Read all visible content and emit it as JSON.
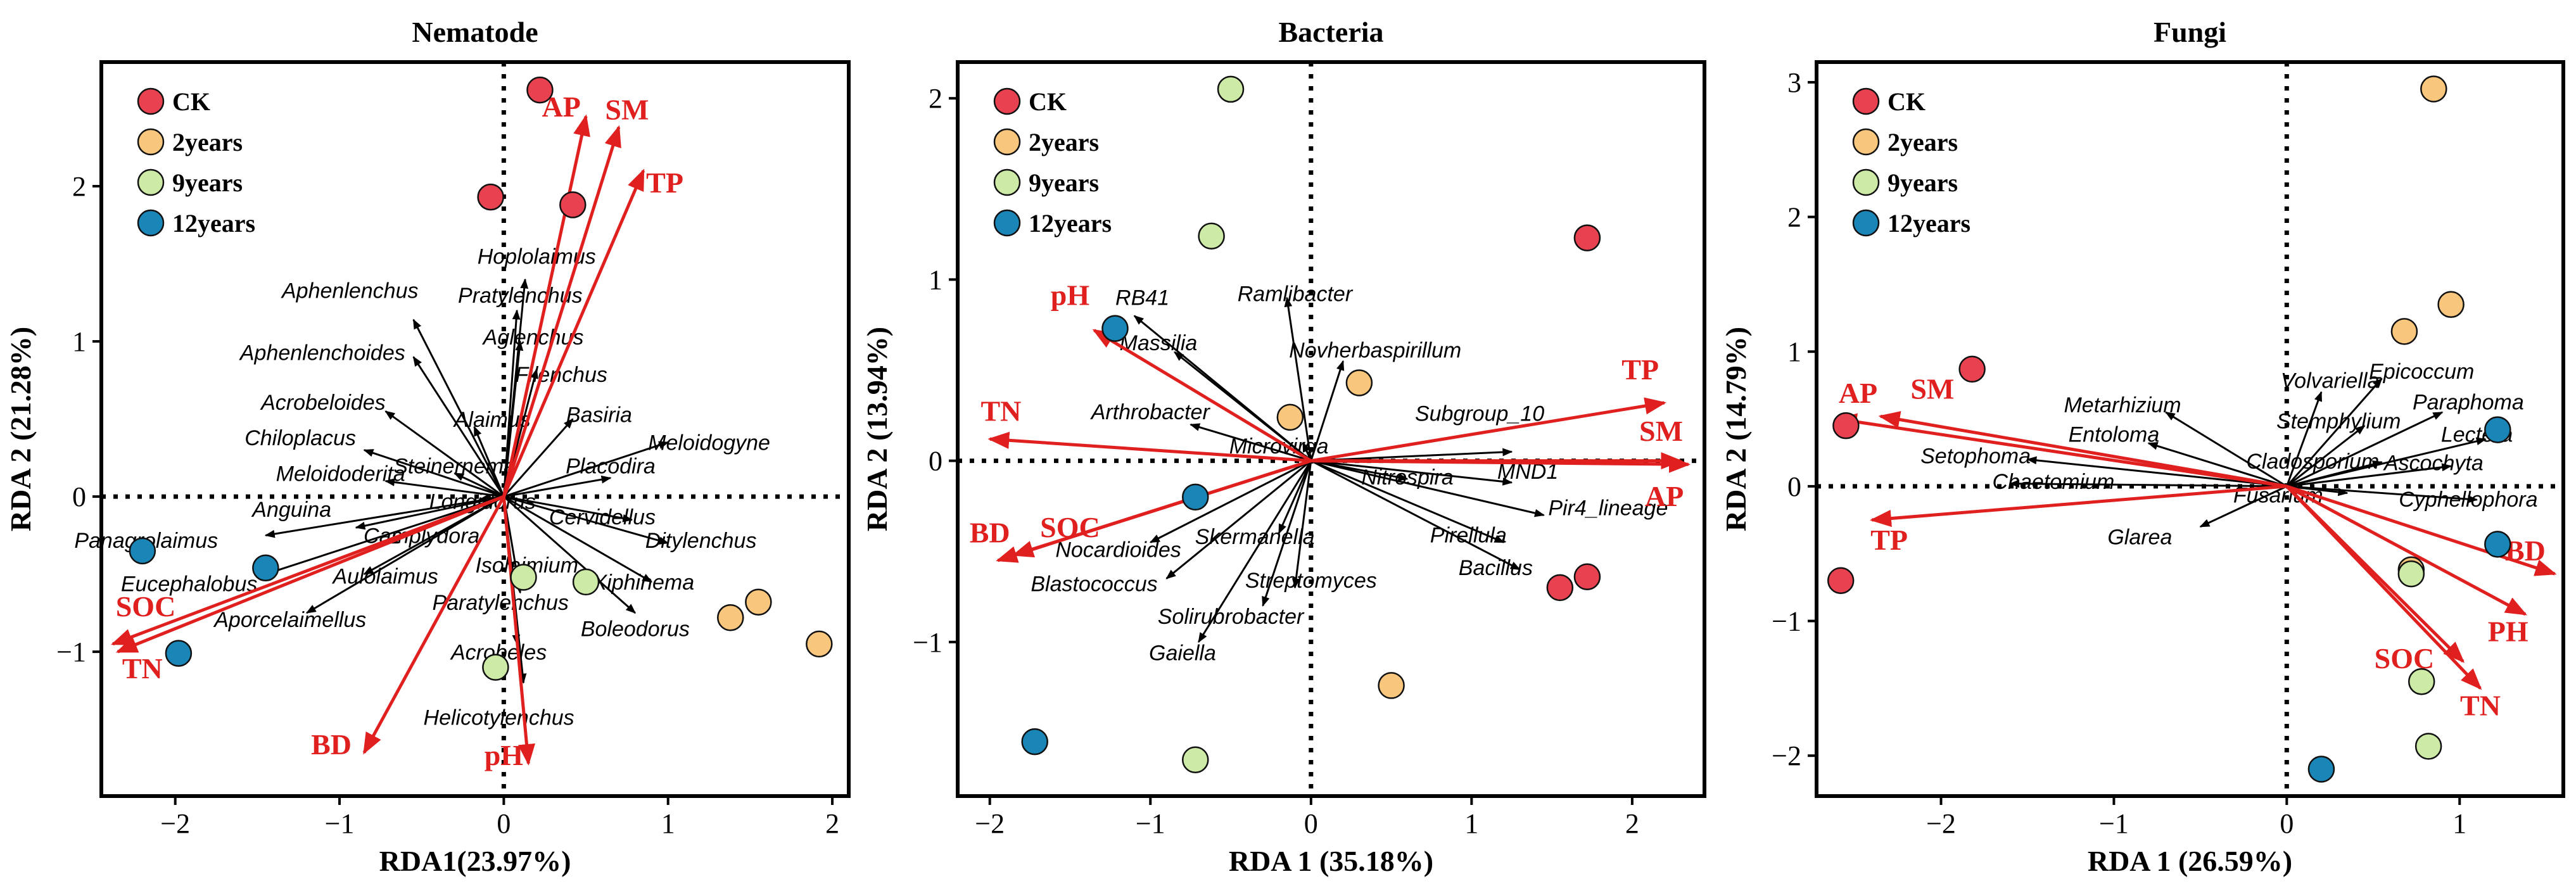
{
  "colors": {
    "CK": "#e8414f",
    "2years": "#f8c67c",
    "9years": "#cdeaa6",
    "12years": "#1a86b8",
    "env": "#e01f1f"
  },
  "legend": [
    "CK",
    "2years",
    "9years",
    "12years"
  ],
  "chart_data": [
    {
      "type": "scatter",
      "panel": "Nematode",
      "title": "Nematode",
      "xlabel": "RDA1(23.97%)",
      "ylabel": "RDA 2 (21.28%)",
      "xlim": [
        -2.45,
        2.1
      ],
      "ylim": [
        -1.93,
        2.8
      ],
      "xticks": [
        -2,
        -1,
        0,
        1,
        2
      ],
      "yticks": [
        -1,
        0,
        1,
        2
      ],
      "points": [
        {
          "g": "CK",
          "x": 0.22,
          "y": 2.62
        },
        {
          "g": "CK",
          "x": -0.08,
          "y": 1.93
        },
        {
          "g": "CK",
          "x": 0.42,
          "y": 1.88
        },
        {
          "g": "2years",
          "x": 1.38,
          "y": -0.78
        },
        {
          "g": "2years",
          "x": 1.55,
          "y": -0.68
        },
        {
          "g": "2years",
          "x": 1.92,
          "y": -0.95
        },
        {
          "g": "9years",
          "x": 0.12,
          "y": -0.52
        },
        {
          "g": "9years",
          "x": 0.5,
          "y": -0.55
        },
        {
          "g": "9years",
          "x": -0.05,
          "y": -1.1
        },
        {
          "g": "12years",
          "x": -2.2,
          "y": -0.35
        },
        {
          "g": "12years",
          "x": -1.45,
          "y": -0.46
        },
        {
          "g": "12years",
          "x": -1.98,
          "y": -1.01
        }
      ],
      "env": [
        {
          "label": "AP",
          "x": 0.5,
          "y": 2.45,
          "lx": 0.35,
          "ly": 2.45
        },
        {
          "label": "SM",
          "x": 0.7,
          "y": 2.38,
          "lx": 0.75,
          "ly": 2.43
        },
        {
          "label": "TP",
          "x": 0.85,
          "y": 2.1,
          "lx": 0.98,
          "ly": 1.96
        },
        {
          "label": "SOC",
          "x": -2.38,
          "y": -0.95,
          "lx": -2.18,
          "ly": -0.77
        },
        {
          "label": "TN",
          "x": -2.35,
          "y": -1.0,
          "lx": -2.2,
          "ly": -1.17
        },
        {
          "label": "BD",
          "x": -0.85,
          "y": -1.65,
          "lx": -1.05,
          "ly": -1.66
        },
        {
          "label": "pH",
          "x": 0.15,
          "y": -1.72,
          "lx": 0.0,
          "ly": -1.73
        }
      ],
      "species": [
        {
          "name": "Hoplolaimus",
          "x": 0.13,
          "y": 1.4,
          "lx": 0.2,
          "ly": 1.5,
          "a": "middle"
        },
        {
          "name": "Pratylenchus",
          "x": 0.08,
          "y": 1.2,
          "lx": 0.1,
          "ly": 1.25,
          "a": "middle"
        },
        {
          "name": "Aphenlenchus",
          "x": -0.55,
          "y": 1.14,
          "lx": -0.52,
          "ly": 1.28,
          "a": "end"
        },
        {
          "name": "Aglenchus",
          "x": 0.1,
          "y": 1.0,
          "lx": 0.18,
          "ly": 0.98,
          "a": "middle"
        },
        {
          "name": "Aphenlenchoides",
          "x": -0.55,
          "y": 0.9,
          "lx": -0.6,
          "ly": 0.88,
          "a": "end"
        },
        {
          "name": "Filenchus",
          "x": 0.2,
          "y": 0.82,
          "lx": 0.35,
          "ly": 0.74,
          "a": "middle"
        },
        {
          "name": "Acrobeloides",
          "x": -0.72,
          "y": 0.55,
          "lx": -0.72,
          "ly": 0.56,
          "a": "end"
        },
        {
          "name": "Alaimus",
          "x": -0.18,
          "y": 0.45,
          "lx": -0.07,
          "ly": 0.45,
          "a": "middle"
        },
        {
          "name": "Basiria",
          "x": 0.42,
          "y": 0.5,
          "lx": 0.38,
          "ly": 0.48,
          "a": "start"
        },
        {
          "name": "Chiloplacus",
          "x": -0.85,
          "y": 0.3,
          "lx": -0.9,
          "ly": 0.33,
          "a": "end"
        },
        {
          "name": "Meloidogyne",
          "x": 1.0,
          "y": 0.35,
          "lx": 1.25,
          "ly": 0.3,
          "a": "middle"
        },
        {
          "name": "Steinernema",
          "x": -0.3,
          "y": 0.15,
          "lx": -0.3,
          "ly": 0.15,
          "a": "middle"
        },
        {
          "name": "Placodira",
          "x": 0.65,
          "y": 0.12,
          "lx": 0.65,
          "ly": 0.15,
          "a": "middle"
        },
        {
          "name": "Meloidoderita",
          "x": -0.72,
          "y": 0.1,
          "lx": -0.6,
          "ly": 0.1,
          "a": "end"
        },
        {
          "name": "Longidorus",
          "x": -0.15,
          "y": -0.02,
          "lx": -0.13,
          "ly": -0.08,
          "a": "middle"
        },
        {
          "name": "Anguina",
          "x": -0.9,
          "y": -0.2,
          "lx": -1.05,
          "ly": -0.13,
          "a": "end"
        },
        {
          "name": "Cervidellus",
          "x": 0.78,
          "y": -0.15,
          "lx": 0.6,
          "ly": -0.18,
          "a": "middle"
        },
        {
          "name": "Camplydora",
          "x": -0.7,
          "y": -0.3,
          "lx": -0.5,
          "ly": -0.3,
          "a": "middle"
        },
        {
          "name": "Panagrolaimus",
          "x": -1.45,
          "y": -0.25,
          "lx": -1.74,
          "ly": -0.33,
          "a": "end"
        },
        {
          "name": "Ditylenchus",
          "x": 1.0,
          "y": -0.3,
          "lx": 1.2,
          "ly": -0.33,
          "a": "middle"
        },
        {
          "name": "Isolaimium",
          "x": 0.05,
          "y": -0.48,
          "lx": 0.14,
          "ly": -0.49,
          "a": "middle"
        },
        {
          "name": "Xiphinema",
          "x": 0.9,
          "y": -0.55,
          "lx": 0.85,
          "ly": -0.6,
          "a": "middle"
        },
        {
          "name": "Eucephalobus",
          "x": -1.45,
          "y": -0.5,
          "lx": -1.5,
          "ly": -0.61,
          "a": "end"
        },
        {
          "name": "Aulolaimus",
          "x": -0.85,
          "y": -0.5,
          "lx": -0.72,
          "ly": -0.56,
          "a": "middle"
        },
        {
          "name": "Paratylenchus",
          "x": 0.1,
          "y": -0.62,
          "lx": -0.02,
          "ly": -0.73,
          "a": "middle"
        },
        {
          "name": "Boleodorus",
          "x": 0.8,
          "y": -0.75,
          "lx": 0.8,
          "ly": -0.9,
          "a": "middle"
        },
        {
          "name": "Aporcelaimellus",
          "x": -1.2,
          "y": -0.75,
          "lx": -1.3,
          "ly": -0.84,
          "a": "middle"
        },
        {
          "name": "Acrobeles",
          "x": 0.08,
          "y": -0.95,
          "lx": -0.03,
          "ly": -1.05,
          "a": "middle"
        },
        {
          "name": "Helicotylenchus",
          "x": 0.12,
          "y": -1.2,
          "lx": -0.03,
          "ly": -1.47,
          "a": "middle"
        }
      ]
    },
    {
      "type": "scatter",
      "panel": "Bacteria",
      "title": "Bacteria",
      "xlabel": "RDA 1 (35.18%)",
      "ylabel": "RDA 2 (13.94%)",
      "xlim": [
        -2.2,
        2.45
      ],
      "ylim": [
        -1.85,
        2.2
      ],
      "xticks": [
        -2,
        -1,
        0,
        1,
        2
      ],
      "yticks": [
        -1,
        0,
        1,
        2
      ],
      "points": [
        {
          "g": "CK",
          "x": 1.72,
          "y": 1.23
        },
        {
          "g": "CK",
          "x": 1.55,
          "y": -0.7
        },
        {
          "g": "CK",
          "x": 1.72,
          "y": -0.64
        },
        {
          "g": "2years",
          "x": -0.13,
          "y": 0.24
        },
        {
          "g": "2years",
          "x": 0.3,
          "y": 0.43
        },
        {
          "g": "2years",
          "x": 0.5,
          "y": -1.24
        },
        {
          "g": "9years",
          "x": -0.5,
          "y": 2.05
        },
        {
          "g": "9years",
          "x": -0.62,
          "y": 1.24
        },
        {
          "g": "9years",
          "x": -0.72,
          "y": -1.65
        },
        {
          "g": "12years",
          "x": -1.22,
          "y": 0.73
        },
        {
          "g": "12years",
          "x": -0.72,
          "y": -0.2
        },
        {
          "g": "12years",
          "x": -1.72,
          "y": -1.55
        }
      ],
      "env": [
        {
          "label": "TP",
          "x": 2.2,
          "y": 0.32,
          "lx": 2.05,
          "ly": 0.45,
          "a": "middle"
        },
        {
          "label": "SM",
          "x": 2.3,
          "y": 0.0,
          "lx": 2.18,
          "ly": 0.11,
          "a": "middle"
        },
        {
          "label": "AP",
          "x": 2.35,
          "y": -0.02,
          "lx": 2.2,
          "ly": -0.25,
          "a": "middle"
        },
        {
          "label": "pH",
          "x": -1.35,
          "y": 0.72,
          "lx": -1.5,
          "ly": 0.86,
          "a": "middle"
        },
        {
          "label": "TN",
          "x": -2.0,
          "y": 0.12,
          "lx": -1.93,
          "ly": 0.22,
          "a": "middle"
        },
        {
          "label": "BD",
          "x": -1.95,
          "y": -0.55,
          "lx": -2.0,
          "ly": -0.45,
          "a": "middle"
        },
        {
          "label": "SOC",
          "x": -1.85,
          "y": -0.52,
          "lx": -1.5,
          "ly": -0.42,
          "a": "middle"
        }
      ],
      "species": [
        {
          "name": "RB41",
          "x": -1.1,
          "y": 0.8,
          "lx": -1.05,
          "ly": 0.86,
          "a": "middle"
        },
        {
          "name": "Ramlibacter",
          "x": -0.15,
          "y": 0.9,
          "lx": -0.1,
          "ly": 0.88,
          "a": "middle"
        },
        {
          "name": "Massilia",
          "x": -0.85,
          "y": 0.6,
          "lx": -0.95,
          "ly": 0.61,
          "a": "middle"
        },
        {
          "name": "Novherbaspirillum",
          "x": 0.2,
          "y": 0.55,
          "lx": 0.4,
          "ly": 0.57,
          "a": "middle"
        },
        {
          "name": "Subgroup_10",
          "x": 1.25,
          "y": 0.05,
          "lx": 1.05,
          "ly": 0.22,
          "a": "middle"
        },
        {
          "name": "Arthrobacter",
          "x": -0.75,
          "y": 0.2,
          "lx": -1.0,
          "ly": 0.23,
          "a": "middle"
        },
        {
          "name": "Microvirga",
          "x": -0.05,
          "y": 0.1,
          "lx": -0.2,
          "ly": 0.04,
          "a": "middle"
        },
        {
          "name": "Nitrospira",
          "x": 0.6,
          "y": -0.1,
          "lx": 0.6,
          "ly": -0.13,
          "a": "middle"
        },
        {
          "name": "MND1",
          "x": 1.25,
          "y": -0.12,
          "lx": 1.35,
          "ly": -0.1,
          "a": "middle"
        },
        {
          "name": "Pir4_lineage",
          "x": 1.45,
          "y": -0.3,
          "lx": 1.85,
          "ly": -0.3,
          "a": "middle"
        },
        {
          "name": "Pirellula",
          "x": 1.2,
          "y": -0.45,
          "lx": 0.98,
          "ly": -0.45,
          "a": "middle"
        },
        {
          "name": "Skermanella",
          "x": -0.2,
          "y": -0.4,
          "lx": -0.35,
          "ly": -0.46,
          "a": "middle"
        },
        {
          "name": "Nocardioides",
          "x": -1.0,
          "y": -0.45,
          "lx": -1.2,
          "ly": -0.53,
          "a": "middle"
        },
        {
          "name": "Bacillus",
          "x": 1.3,
          "y": -0.6,
          "lx": 1.15,
          "ly": -0.63,
          "a": "middle"
        },
        {
          "name": "Blastococcus",
          "x": -0.9,
          "y": -0.65,
          "lx": -1.35,
          "ly": -0.72,
          "a": "middle"
        },
        {
          "name": "Streptomyces",
          "x": -0.1,
          "y": -0.7,
          "lx": 0.0,
          "ly": -0.7,
          "a": "middle"
        },
        {
          "name": "Solirubrobacter",
          "x": -0.3,
          "y": -0.8,
          "lx": -0.5,
          "ly": -0.9,
          "a": "middle"
        },
        {
          "name": "Gaiella",
          "x": -0.7,
          "y": -1.0,
          "lx": -0.8,
          "ly": -1.1,
          "a": "middle"
        }
      ]
    },
    {
      "type": "scatter",
      "panel": "Fungi",
      "title": "Fungi",
      "xlabel": "RDA 1 (26.59%)",
      "ylabel": "RDA 2 (14.79%)",
      "xlim": [
        -2.72,
        1.6
      ],
      "ylim": [
        -2.3,
        3.15
      ],
      "xticks": [
        -2,
        -1,
        0,
        1
      ],
      "yticks": [
        -2,
        -1,
        0,
        1,
        2,
        3
      ],
      "points": [
        {
          "g": "CK",
          "x": -1.82,
          "y": 0.87
        },
        {
          "g": "CK",
          "x": -2.55,
          "y": 0.45
        },
        {
          "g": "CK",
          "x": -2.58,
          "y": -0.7
        },
        {
          "g": "2years",
          "x": 0.85,
          "y": 2.95
        },
        {
          "g": "2years",
          "x": 0.95,
          "y": 1.35
        },
        {
          "g": "2years",
          "x": 0.68,
          "y": 1.15
        },
        {
          "g": "2years",
          "x": 0.72,
          "y": -0.62
        },
        {
          "g": "9years",
          "x": 0.72,
          "y": -0.65
        },
        {
          "g": "9years",
          "x": 0.78,
          "y": -1.45
        },
        {
          "g": "9years",
          "x": 0.82,
          "y": -1.93
        },
        {
          "g": "12years",
          "x": 1.22,
          "y": 0.42
        },
        {
          "g": "12years",
          "x": 1.22,
          "y": -0.43
        },
        {
          "g": "12years",
          "x": 0.2,
          "y": -2.1
        }
      ],
      "env": [
        {
          "label": "AP",
          "x": -2.6,
          "y": 0.5,
          "lx": -2.48,
          "ly": 0.62,
          "a": "middle"
        },
        {
          "label": "SM",
          "x": -2.35,
          "y": 0.52,
          "lx": -2.05,
          "ly": 0.65,
          "a": "middle"
        },
        {
          "label": "TP",
          "x": -2.4,
          "y": -0.25,
          "lx": -2.3,
          "ly": -0.47,
          "a": "middle"
        },
        {
          "label": "BD",
          "x": 1.55,
          "y": -0.65,
          "lx": 1.38,
          "ly": -0.55,
          "a": "middle"
        },
        {
          "label": "PH",
          "x": 1.38,
          "y": -0.95,
          "lx": 1.28,
          "ly": -1.15,
          "a": "middle"
        },
        {
          "label": "SOC",
          "x": 1.02,
          "y": -1.3,
          "lx": 0.68,
          "ly": -1.35,
          "a": "middle"
        },
        {
          "label": "TN",
          "x": 1.12,
          "y": -1.5,
          "lx": 1.12,
          "ly": -1.7,
          "a": "middle"
        }
      ],
      "species": [
        {
          "name": "Volvariella",
          "x": 0.2,
          "y": 0.7,
          "lx": 0.25,
          "ly": 0.73,
          "a": "middle"
        },
        {
          "name": "Epicoccum",
          "x": 0.55,
          "y": 0.8,
          "lx": 0.78,
          "ly": 0.8,
          "a": "middle"
        },
        {
          "name": "Metarhizium",
          "x": -0.7,
          "y": 0.55,
          "lx": -0.95,
          "ly": 0.55,
          "a": "middle"
        },
        {
          "name": "Paraphoma",
          "x": 0.9,
          "y": 0.55,
          "lx": 1.05,
          "ly": 0.57,
          "a": "middle"
        },
        {
          "name": "Stemphylium",
          "x": 0.45,
          "y": 0.45,
          "lx": 0.3,
          "ly": 0.43,
          "a": "middle"
        },
        {
          "name": "Entoloma",
          "x": -0.8,
          "y": 0.32,
          "lx": -1.0,
          "ly": 0.33,
          "a": "middle"
        },
        {
          "name": "Lectera",
          "x": 1.15,
          "y": 0.35,
          "lx": 1.1,
          "ly": 0.33,
          "a": "middle"
        },
        {
          "name": "Cladosporium",
          "x": 0.55,
          "y": 0.18,
          "lx": 0.15,
          "ly": 0.13,
          "a": "middle"
        },
        {
          "name": "Setophoma",
          "x": -1.5,
          "y": 0.2,
          "lx": -1.8,
          "ly": 0.17,
          "a": "middle"
        },
        {
          "name": "Ascochyta",
          "x": 0.95,
          "y": 0.15,
          "lx": 0.85,
          "ly": 0.12,
          "a": "middle"
        },
        {
          "name": "Chaetomium",
          "x": -1.6,
          "y": 0.02,
          "lx": -1.35,
          "ly": -0.02,
          "a": "middle"
        },
        {
          "name": "Fusarium",
          "x": 0.35,
          "y": -0.05,
          "lx": -0.05,
          "ly": -0.12,
          "a": "middle"
        },
        {
          "name": "Cyphellophora",
          "x": 1.1,
          "y": -0.1,
          "lx": 1.05,
          "ly": -0.15,
          "a": "middle"
        },
        {
          "name": "Glarea",
          "x": -0.5,
          "y": -0.3,
          "lx": -0.85,
          "ly": -0.43,
          "a": "middle"
        }
      ]
    }
  ]
}
